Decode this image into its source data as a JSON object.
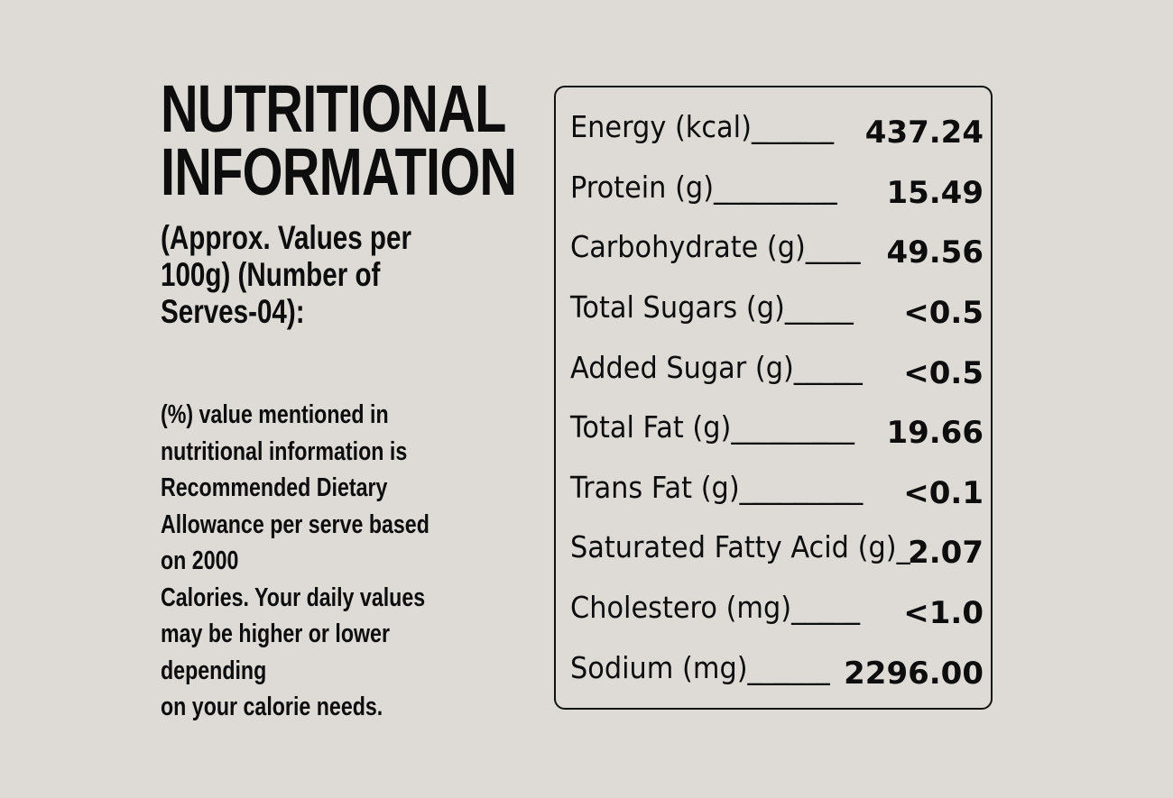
{
  "title": {
    "line1": "NUTRITIONAL",
    "line2": "INFORMATION"
  },
  "subtitle": {
    "line1": "(Approx. Values per",
    "line2": "100g) (Number of",
    "line3": "Serves-04):"
  },
  "note": {
    "lines": [
      "(%) value mentioned in",
      "nutritional information is",
      "Recommended Dietary",
      "Allowance per serve based",
      "on 2000",
      "Calories. Your daily values",
      "may be higher or lower",
      "depending",
      "on your calorie needs."
    ]
  },
  "nutrients": [
    {
      "label": "Energy (kcal)______",
      "value": "437.24"
    },
    {
      "label": "Protein (g)_________",
      "value": "15.49"
    },
    {
      "label": "Carbohydrate (g)____",
      "value": "49.56"
    },
    {
      "label": "Total Sugars (g)_____",
      "value": "<0.5"
    },
    {
      "label": "Added Sugar (g)_____",
      "value": "<0.5"
    },
    {
      "label": "Total Fat (g)_________",
      "value": "19.66"
    },
    {
      "label": "Trans Fat (g)_________",
      "value": "<0.1"
    },
    {
      "label": "Saturated Fatty Acid (g)_",
      "value": "2.07"
    },
    {
      "label": "Cholestero (mg)_____",
      "value": "<1.0"
    },
    {
      "label": "Sodium (mg)______",
      "value": "2296.00"
    }
  ]
}
